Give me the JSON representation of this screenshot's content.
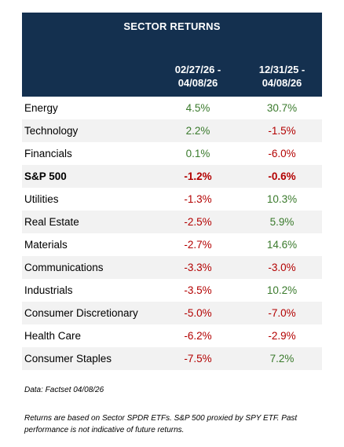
{
  "header": {
    "title": "SECTOR RETURNS",
    "col1": "02/27/26 -\n04/08/26",
    "col1_line1": "02/27/26 -",
    "col1_line2": "04/08/26",
    "col2_line1": "12/31/25 -",
    "col2_line2": "04/08/26"
  },
  "colors": {
    "header_bg": "#14304f",
    "positive": "#3a7a2c",
    "negative": "#b30000",
    "row_shade": "#f2f2f2"
  },
  "rows": [
    {
      "name": "Energy",
      "v1": "4.5%",
      "v2": "30.7%"
    },
    {
      "name": "Technology",
      "v1": "2.2%",
      "v2": "-1.5%"
    },
    {
      "name": "Financials",
      "v1": "0.1%",
      "v2": "-6.0%"
    },
    {
      "name": "S&P 500",
      "v1": "-1.2%",
      "v2": "-0.6%"
    },
    {
      "name": "Utilities",
      "v1": "-1.3%",
      "v2": "10.3%"
    },
    {
      "name": "Real Estate",
      "v1": "-2.5%",
      "v2": "5.9%"
    },
    {
      "name": "Materials",
      "v1": "-2.7%",
      "v2": "14.6%"
    },
    {
      "name": "Communications",
      "v1": "-3.3%",
      "v2": "-3.0%"
    },
    {
      "name": "Industrials",
      "v1": "-3.5%",
      "v2": "10.2%"
    },
    {
      "name": "Consumer Discretionary",
      "v1": "-5.0%",
      "v2": "-7.0%"
    },
    {
      "name": "Health Care",
      "v1": "-6.2%",
      "v2": "-2.9%"
    },
    {
      "name": "Consumer Staples",
      "v1": "-7.5%",
      "v2": "7.2%"
    }
  ],
  "source": "Data: Factset   04/08/26",
  "footnote": "Returns are based on Sector SPDR  ETFs. S&P 500 proxied by SPY ETF. Past performance is not indicative of future returns."
}
